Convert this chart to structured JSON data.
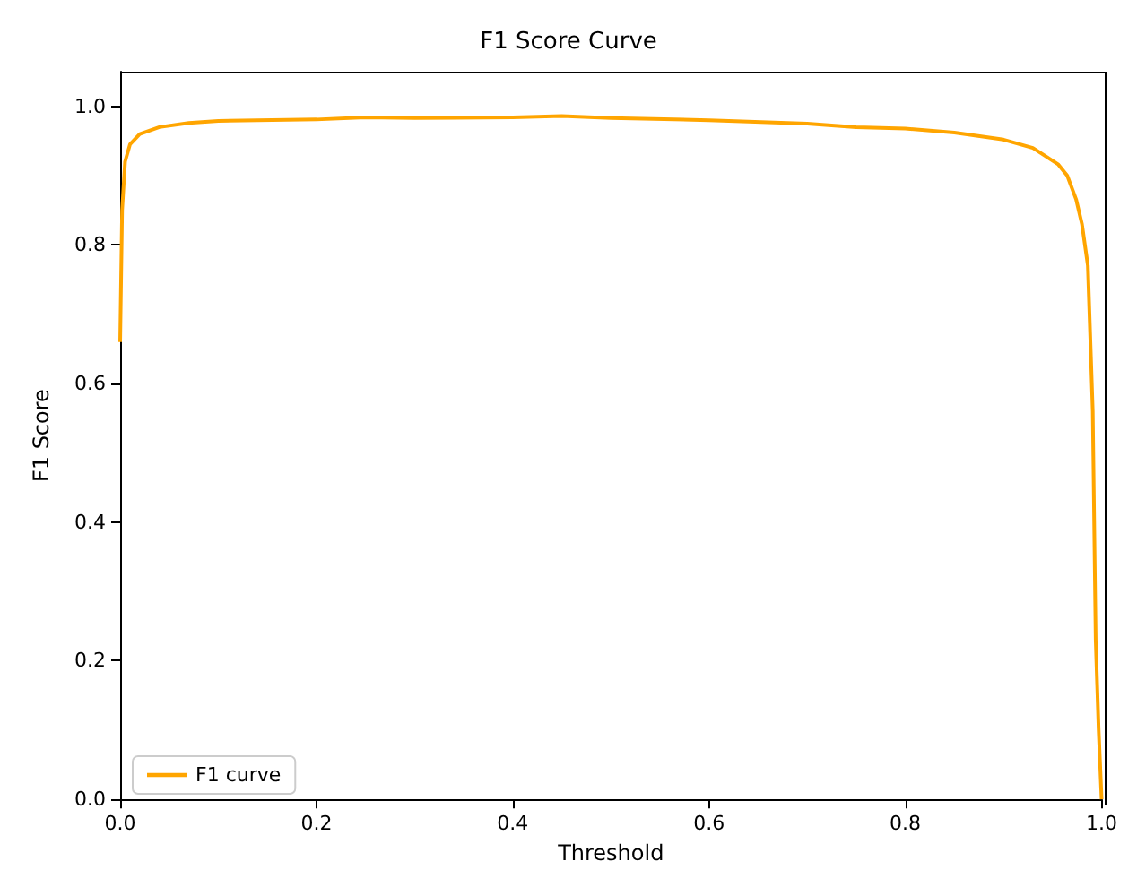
{
  "chart_data": {
    "type": "line",
    "title": "F1 Score Curve",
    "xlabel": "Threshold",
    "ylabel": "F1 Score",
    "xlim": [
      0,
      1
    ],
    "ylim": [
      0,
      1.05
    ],
    "xticks": [
      {
        "value": 0,
        "label": "0.0"
      },
      0.2,
      0.4,
      0.6,
      0.8,
      {
        "value": 1,
        "label": "1.0"
      }
    ],
    "yticks": [
      {
        "value": 0,
        "label": "0.0"
      },
      0.2,
      0.4,
      0.6,
      0.8,
      {
        "value": 1,
        "label": "1.0"
      }
    ],
    "grid": false,
    "legend": "bottom left",
    "marker": "none",
    "line_style": "solid",
    "series": [
      {
        "name": "F1 curve",
        "color": "#ffa500",
        "x": [
          0,
          0.002,
          0.005,
          0.01,
          0.02,
          0.04,
          0.07,
          0.1,
          0.2,
          0.25,
          0.3,
          0.4,
          0.45,
          0.5,
          0.6,
          0.7,
          0.75,
          0.8,
          0.85,
          0.9,
          0.93,
          0.956,
          0.965,
          0.974,
          0.98,
          0.986,
          0.991,
          0.994,
          0.997,
          1.0
        ],
        "values": [
          0.66,
          0.85,
          0.92,
          0.945,
          0.96,
          0.97,
          0.976,
          0.979,
          0.981,
          0.984,
          0.983,
          0.984,
          0.986,
          0.983,
          0.98,
          0.975,
          0.97,
          0.968,
          0.962,
          0.952,
          0.94,
          0.916,
          0.9,
          0.866,
          0.83,
          0.77,
          0.56,
          0.23,
          0.1,
          0
        ]
      }
    ]
  }
}
